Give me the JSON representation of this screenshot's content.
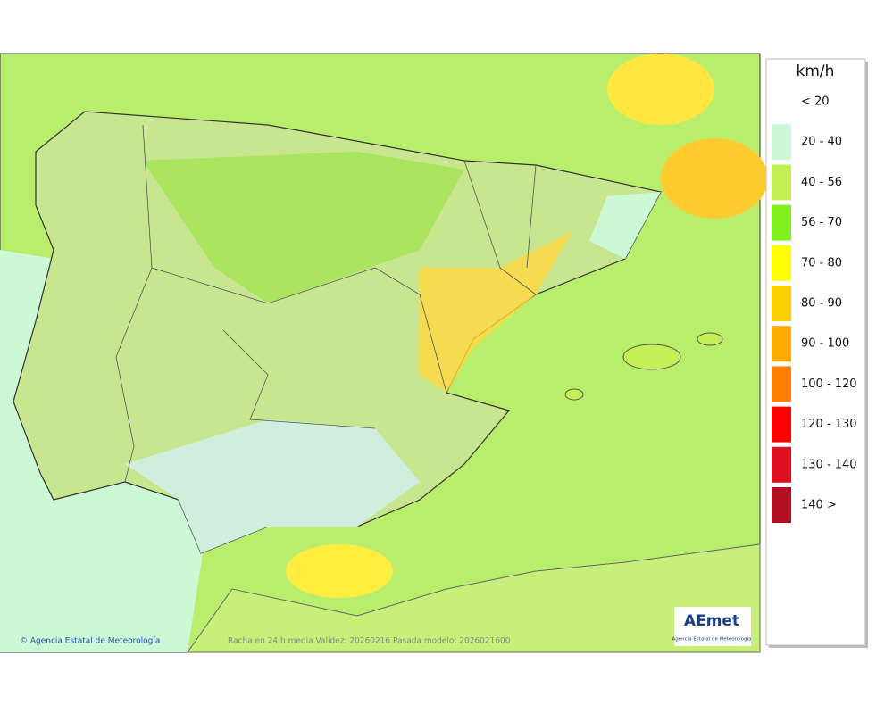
{
  "legend": {
    "unit": "km/h",
    "items": [
      {
        "label": "< 20",
        "color": "#ffffff"
      },
      {
        "label": "20 - 40",
        "color": "#ccf8d6"
      },
      {
        "label": "40 - 56",
        "color": "#c4f055"
      },
      {
        "label": "56 - 70",
        "color": "#80f020"
      },
      {
        "label": "70 - 80",
        "color": "#ffff00"
      },
      {
        "label": "80 - 90",
        "color": "#ffd000"
      },
      {
        "label": "90 - 100",
        "color": "#ffaa00"
      },
      {
        "label": "100 - 120",
        "color": "#ff8000"
      },
      {
        "label": "120 - 130",
        "color": "#ff0000"
      },
      {
        "label": "130 - 140",
        "color": "#dd1020"
      },
      {
        "label": "140 >",
        "color": "#b01020"
      }
    ]
  },
  "footer": {
    "credit": "© Agencia Estatal de Meteorología",
    "caption": "Racha en 24 h media  Validez: 20260216 Pasada modelo: 2026021600"
  },
  "logo": {
    "name": "AEmet",
    "subtitle": "Agencia Estatal de Meteorología"
  }
}
